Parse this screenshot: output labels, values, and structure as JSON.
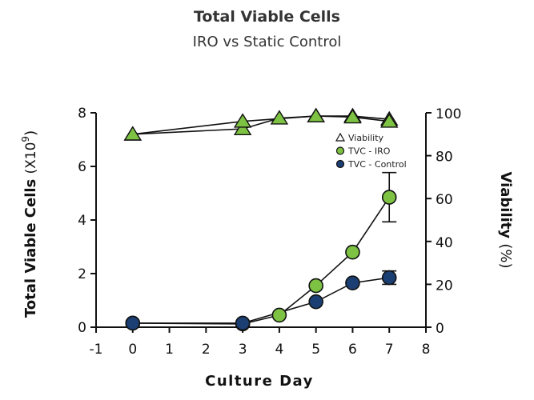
{
  "chart_data": {
    "type": "line",
    "title": "Total Viable Cells",
    "subtitle": "IRO vs Static Control",
    "xlabel": "Culture Day",
    "ylabel_left": "Total Viable Cells",
    "ylabel_left_unit_base": "(X10",
    "ylabel_left_unit_exp": "9",
    "ylabel_left_unit_close": ")",
    "ylabel_right": "Viability",
    "ylabel_right_unit": "(%)",
    "xlim": [
      -1,
      8
    ],
    "ylim_left": [
      0,
      8
    ],
    "ylim_right": [
      0,
      100
    ],
    "x_ticks": [
      "-1",
      "0",
      "1",
      "2",
      "3",
      "4",
      "5",
      "6",
      "7",
      "8"
    ],
    "y_left_ticks": [
      "0",
      "2",
      "4",
      "6",
      "8"
    ],
    "y_right_ticks": [
      "0",
      "20",
      "40",
      "60",
      "80",
      "100"
    ],
    "legend": [
      "Viability",
      "TVC - IRO",
      "TVC - Control"
    ],
    "series": [
      {
        "name": "TVC - IRO",
        "axis": "left",
        "marker": "circle",
        "color": "#7DC242",
        "x": [
          0,
          3,
          4,
          5,
          6,
          7
        ],
        "y": [
          0.15,
          0.12,
          0.45,
          1.55,
          2.8,
          4.85
        ],
        "err": [
          0,
          0,
          0,
          0,
          0,
          0.92
        ]
      },
      {
        "name": "TVC - Control",
        "axis": "left",
        "marker": "circle",
        "color": "#1B3F73",
        "x": [
          0,
          3,
          5,
          6,
          7
        ],
        "y": [
          0.15,
          0.15,
          0.95,
          1.65,
          1.85
        ],
        "err": [
          0,
          0,
          0,
          0,
          0.25
        ]
      },
      {
        "name": "Viability",
        "axis": "right",
        "marker": "triangle",
        "color": "#7DC242",
        "x": [
          0,
          3,
          4,
          5,
          6,
          7
        ],
        "y": [
          90,
          92.5,
          97.5,
          98.5,
          98.5,
          97
        ]
      },
      {
        "name": "Viability",
        "axis": "right",
        "marker": "triangle",
        "color": "#7DC242",
        "x": [
          0,
          3,
          5,
          6,
          7
        ],
        "y": [
          90,
          96,
          98.5,
          98,
          96
        ]
      }
    ],
    "grid": false,
    "legend_position": "top-right"
  }
}
